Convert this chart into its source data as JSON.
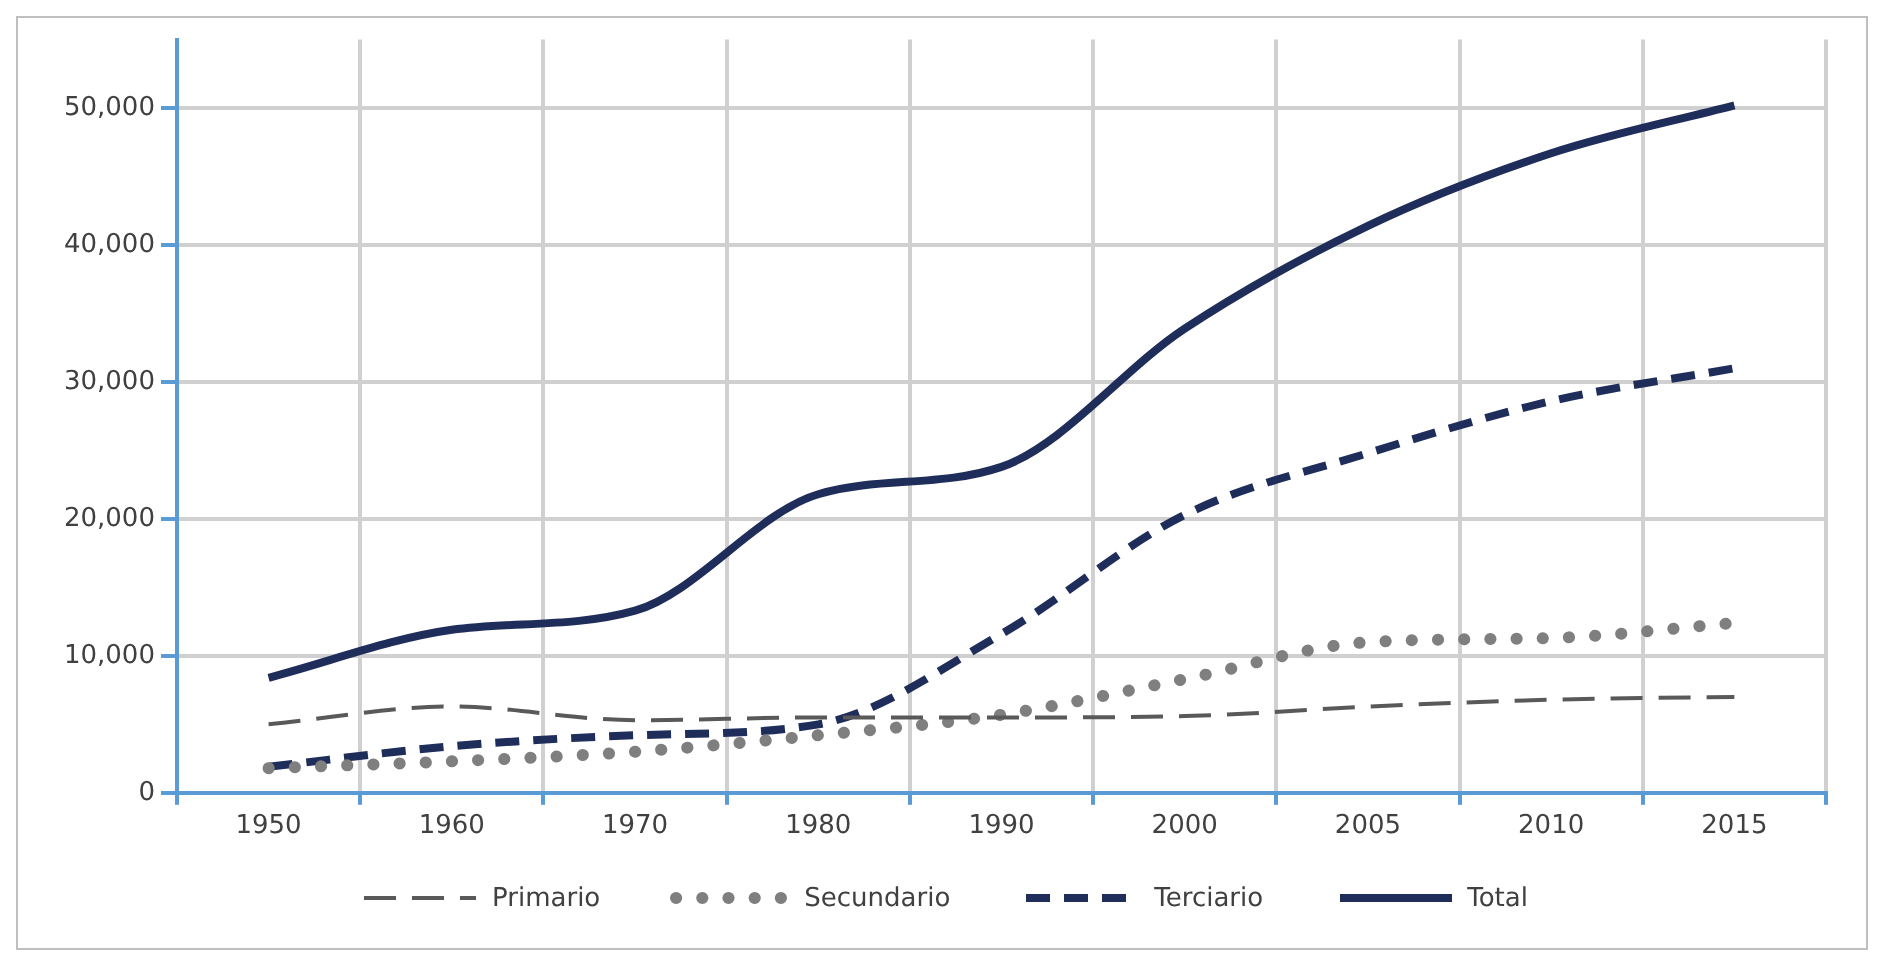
{
  "chart_data": {
    "type": "line",
    "categories": [
      "1950",
      "1960",
      "1970",
      "1980",
      "1990",
      "2000",
      "2005",
      "2010",
      "2015"
    ],
    "series": [
      {
        "name": "Primario",
        "color": "#595959",
        "line_style": "dashed",
        "values": [
          5000,
          6300,
          5300,
          5500,
          5500,
          5600,
          6300,
          6800,
          7000
        ]
      },
      {
        "name": "Secundario",
        "color": "#7f7f7f",
        "line_style": "dotted",
        "values": [
          1800,
          2300,
          3000,
          4200,
          5700,
          8300,
          11000,
          11300,
          12400
        ]
      },
      {
        "name": "Terciario",
        "color": "#1f2d5a",
        "line_style": "dashed",
        "values": [
          1900,
          3400,
          4200,
          5000,
          11600,
          20300,
          24800,
          28600,
          31000
        ]
      },
      {
        "name": "Total",
        "color": "#1f2d5a",
        "line_style": "solid",
        "values": [
          8400,
          11900,
          13300,
          21800,
          23800,
          33900,
          41400,
          46700,
          50200
        ]
      }
    ],
    "ylim": [
      0,
      55000
    ],
    "yticks": [
      {
        "value": 0,
        "label": "0"
      },
      {
        "value": 10000,
        "label": "10,000"
      },
      {
        "value": 20000,
        "label": "20,000"
      },
      {
        "value": 30000,
        "label": "30,000"
      },
      {
        "value": 40000,
        "label": "40,000"
      },
      {
        "value": 50000,
        "label": "50,000"
      }
    ],
    "grid": true,
    "legend": "bottom",
    "marker": "none"
  }
}
